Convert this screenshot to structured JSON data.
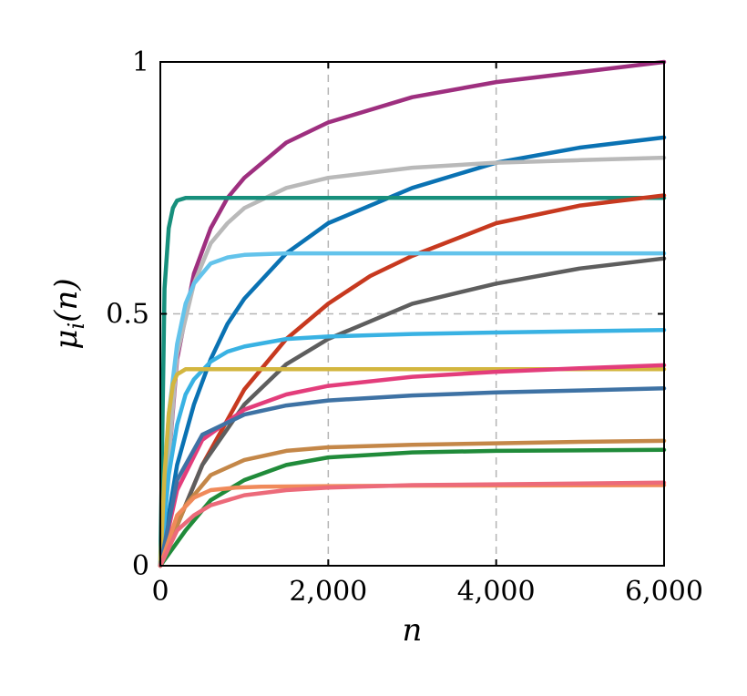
{
  "chart_data": {
    "type": "line",
    "xlabel": "n",
    "ylabel": "μi(n)",
    "xlim": [
      0,
      6000
    ],
    "ylim": [
      0,
      1
    ],
    "grid": true,
    "legend": "none",
    "xticks": [
      {
        "value": 0,
        "label": "0"
      },
      {
        "value": 2000,
        "label": "2,000"
      },
      {
        "value": 4000,
        "label": "4,000"
      },
      {
        "value": 6000,
        "label": "6,000"
      }
    ],
    "yticks": [
      {
        "value": 0,
        "label": "0"
      },
      {
        "value": 0.5,
        "label": "0.5"
      },
      {
        "value": 1,
        "label": "1"
      }
    ],
    "series": [
      {
        "color": "#9e2f7f",
        "x": [
          0,
          200,
          400,
          600,
          800,
          1000,
          1500,
          2000,
          3000,
          4000,
          5000,
          6000
        ],
        "y": [
          0,
          0.41,
          0.58,
          0.67,
          0.73,
          0.77,
          0.84,
          0.88,
          0.93,
          0.96,
          0.98,
          1.0
        ]
      },
      {
        "color": "#0a72b3",
        "x": [
          0,
          200,
          400,
          600,
          800,
          1000,
          1500,
          2000,
          3000,
          4000,
          5000,
          6000
        ],
        "y": [
          0,
          0.2,
          0.32,
          0.41,
          0.48,
          0.53,
          0.62,
          0.68,
          0.75,
          0.8,
          0.83,
          0.85
        ]
      },
      {
        "color": "#b9b9b9",
        "x": [
          0,
          200,
          400,
          600,
          800,
          1000,
          1500,
          2000,
          3000,
          4000,
          5000,
          6000
        ],
        "y": [
          0,
          0.42,
          0.56,
          0.64,
          0.68,
          0.71,
          0.75,
          0.77,
          0.79,
          0.8,
          0.805,
          0.81
        ]
      },
      {
        "color": "#178f7c",
        "x": [
          0,
          50,
          100,
          150,
          200,
          300,
          400,
          6000
        ],
        "y": [
          0,
          0.55,
          0.67,
          0.71,
          0.725,
          0.73,
          0.73,
          0.73
        ]
      },
      {
        "color": "#c7391f",
        "x": [
          0,
          500,
          1000,
          1500,
          2000,
          2500,
          3000,
          4000,
          5000,
          6000
        ],
        "y": [
          0,
          0.2,
          0.35,
          0.45,
          0.52,
          0.575,
          0.615,
          0.68,
          0.715,
          0.735
        ]
      },
      {
        "color": "#63c3eb",
        "x": [
          0,
          100,
          200,
          300,
          400,
          600,
          800,
          1000,
          1500,
          6000
        ],
        "y": [
          0,
          0.3,
          0.44,
          0.52,
          0.56,
          0.6,
          0.612,
          0.617,
          0.62,
          0.62
        ]
      },
      {
        "color": "#5e5e5e",
        "x": [
          0,
          500,
          1000,
          1500,
          2000,
          3000,
          4000,
          5000,
          6000
        ],
        "y": [
          0,
          0.2,
          0.32,
          0.4,
          0.45,
          0.52,
          0.56,
          0.59,
          0.61
        ]
      },
      {
        "color": "#39b2e3",
        "x": [
          0,
          100,
          200,
          300,
          400,
          600,
          800,
          1000,
          1500,
          2000,
          3000,
          4000,
          6000
        ],
        "y": [
          0,
          0.18,
          0.28,
          0.34,
          0.37,
          0.405,
          0.425,
          0.435,
          0.45,
          0.455,
          0.46,
          0.463,
          0.468
        ]
      },
      {
        "color": "#d3b63f",
        "x": [
          0,
          50,
          100,
          150,
          200,
          300,
          400,
          6000
        ],
        "y": [
          0,
          0.18,
          0.3,
          0.36,
          0.38,
          0.39,
          0.39,
          0.39
        ]
      },
      {
        "color": "#e33d7b",
        "x": [
          0,
          200,
          500,
          1000,
          1500,
          2000,
          3000,
          4000,
          5000,
          6000
        ],
        "y": [
          0,
          0.15,
          0.25,
          0.31,
          0.34,
          0.357,
          0.375,
          0.385,
          0.392,
          0.398
        ]
      },
      {
        "color": "#3e72a4",
        "x": [
          0,
          200,
          500,
          1000,
          1500,
          2000,
          3000,
          4000,
          5000,
          6000
        ],
        "y": [
          0,
          0.17,
          0.26,
          0.3,
          0.318,
          0.328,
          0.338,
          0.344,
          0.348,
          0.352
        ]
      },
      {
        "color": "#c48748",
        "x": [
          0,
          300,
          600,
          1000,
          1500,
          2000,
          3000,
          4000,
          5000,
          6000
        ],
        "y": [
          0,
          0.12,
          0.18,
          0.21,
          0.228,
          0.235,
          0.24,
          0.243,
          0.246,
          0.248
        ]
      },
      {
        "color": "#208b3a",
        "x": [
          0,
          300,
          600,
          1000,
          1500,
          2000,
          3000,
          4000,
          6000
        ],
        "y": [
          0,
          0.07,
          0.13,
          0.17,
          0.2,
          0.215,
          0.225,
          0.228,
          0.23
        ]
      },
      {
        "color": "#f08a5a",
        "x": [
          0,
          200,
          400,
          600,
          900,
          1200,
          2000,
          3000,
          6000
        ],
        "y": [
          0,
          0.1,
          0.135,
          0.15,
          0.155,
          0.157,
          0.158,
          0.159,
          0.16
        ]
      },
      {
        "color": "#ec6a7a",
        "x": [
          0,
          200,
          400,
          600,
          1000,
          1500,
          2000,
          3000,
          6000
        ],
        "y": [
          0,
          0.07,
          0.1,
          0.12,
          0.14,
          0.15,
          0.155,
          0.16,
          0.165
        ]
      }
    ]
  }
}
